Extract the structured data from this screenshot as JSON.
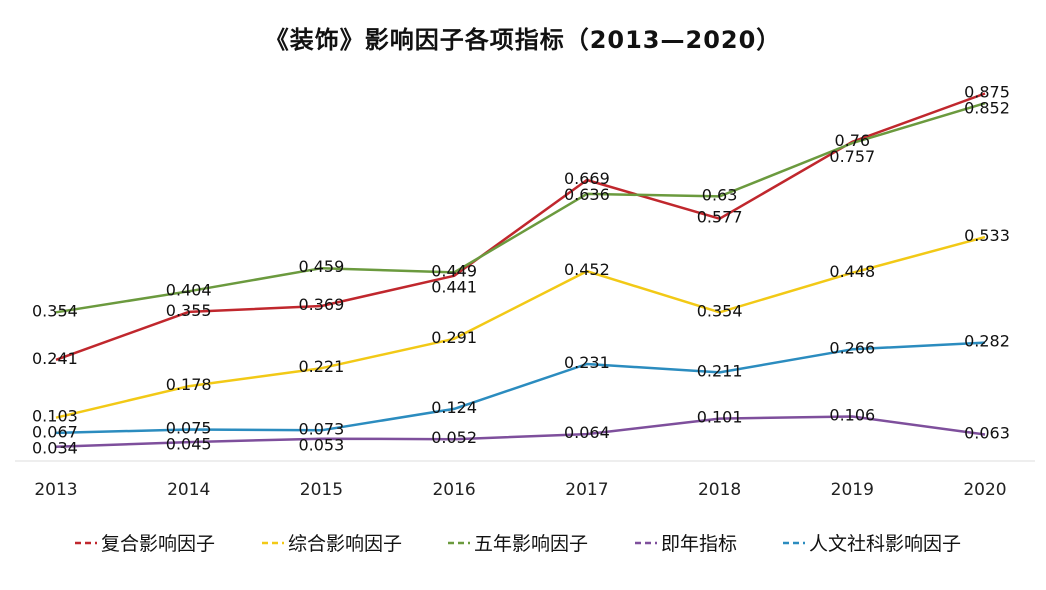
{
  "chart_data": {
    "type": "line",
    "title": "《装饰》影响因子各项指标（2013—2020）",
    "xlabel": "",
    "ylabel": "",
    "categories": [
      "2013",
      "2014",
      "2015",
      "2016",
      "2017",
      "2018",
      "2019",
      "2020"
    ],
    "ylim": [
      0,
      0.95
    ],
    "grid": false,
    "legend": "bottom",
    "series": [
      {
        "name": "复合影响因子",
        "color": "#c0272d",
        "values": [
          0.241,
          0.355,
          0.369,
          0.441,
          0.669,
          0.577,
          0.76,
          0.875
        ]
      },
      {
        "name": "综合影响因子",
        "color": "#f2c916",
        "values": [
          0.103,
          0.178,
          0.221,
          0.291,
          0.452,
          0.354,
          0.448,
          0.533
        ]
      },
      {
        "name": "五年影响因子",
        "color": "#6b9a3e",
        "values": [
          0.354,
          0.404,
          0.459,
          0.449,
          0.636,
          0.63,
          0.757,
          0.852
        ]
      },
      {
        "name": "即年指标",
        "color": "#7e4f9c",
        "values": [
          0.034,
          0.045,
          0.053,
          0.052,
          0.064,
          0.101,
          0.106,
          0.063
        ]
      },
      {
        "name": "人文社科影响因子",
        "color": "#2b8cbf",
        "values": [
          0.067,
          0.075,
          0.073,
          0.124,
          0.231,
          0.211,
          0.266,
          0.282
        ]
      }
    ]
  }
}
